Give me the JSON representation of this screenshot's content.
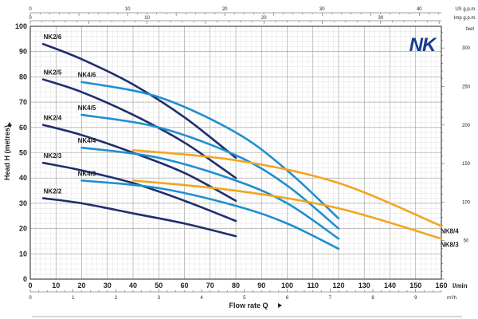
{
  "chart_data": {
    "type": "line",
    "title": "",
    "xlabel": "Flow rate Q",
    "ylabel": "Head H (metres)",
    "xlim": [
      0,
      160
    ],
    "ylim": [
      0,
      100
    ],
    "x_ticks": [
      0,
      10,
      20,
      30,
      40,
      50,
      60,
      70,
      80,
      90,
      100,
      110,
      120,
      130,
      140,
      150,
      160
    ],
    "x_unit": "l/min",
    "y_ticks": [
      0,
      10,
      20,
      30,
      40,
      50,
      60,
      70,
      80,
      90,
      100
    ],
    "secondary_axes": {
      "m3h": {
        "label": "m³/h",
        "ticks": [
          0,
          1,
          2,
          3,
          4,
          5,
          6,
          7,
          8,
          9
        ]
      },
      "usgpm": {
        "label": "US g.p.m.",
        "ticks": [
          0,
          10,
          20,
          30,
          40
        ]
      },
      "impgpm": {
        "label": "Imp g.p.m.",
        "ticks": [
          0,
          10,
          20,
          30
        ]
      },
      "feet": {
        "label": "feet",
        "ticks": [
          50,
          100,
          150,
          200,
          250,
          300
        ]
      }
    },
    "logo": "NK",
    "series": [
      {
        "name": "NK2/6",
        "color": "#1f2f6e",
        "x": [
          5,
          20,
          40,
          60,
          80
        ],
        "y": [
          93,
          87,
          77,
          64,
          48
        ]
      },
      {
        "name": "NK2/5",
        "color": "#1f2f6e",
        "x": [
          5,
          20,
          40,
          60,
          80
        ],
        "y": [
          79,
          74,
          65,
          54,
          40
        ]
      },
      {
        "name": "NK2/4",
        "color": "#1f2f6e",
        "x": [
          5,
          20,
          40,
          60,
          80
        ],
        "y": [
          61,
          57,
          50,
          42,
          31
        ]
      },
      {
        "name": "NK2/3",
        "color": "#1f2f6e",
        "x": [
          5,
          20,
          40,
          60,
          80
        ],
        "y": [
          46,
          43,
          38,
          31,
          23
        ]
      },
      {
        "name": "NK2/2",
        "color": "#1f2f6e",
        "x": [
          5,
          20,
          40,
          60,
          80
        ],
        "y": [
          32,
          30,
          26,
          22,
          17
        ]
      },
      {
        "name": "NK4/6",
        "color": "#1f8fd0",
        "x": [
          20,
          50,
          80,
          100,
          120
        ],
        "y": [
          78,
          72,
          58,
          43,
          24
        ]
      },
      {
        "name": "NK4/5",
        "color": "#1f8fd0",
        "x": [
          20,
          50,
          80,
          100,
          120
        ],
        "y": [
          65,
          60,
          49,
          37,
          20
        ]
      },
      {
        "name": "NK4/4",
        "color": "#1f8fd0",
        "x": [
          20,
          50,
          80,
          100,
          120
        ],
        "y": [
          52,
          48,
          39,
          30,
          16
        ]
      },
      {
        "name": "NK4/3",
        "color": "#1f8fd0",
        "x": [
          20,
          50,
          80,
          100,
          120
        ],
        "y": [
          39,
          36,
          29,
          22,
          12
        ]
      },
      {
        "name": "NK8/4",
        "color": "#f2a51f",
        "x": [
          40,
          80,
          120,
          160
        ],
        "y": [
          51,
          47,
          38,
          21
        ]
      },
      {
        "name": "NK8/3",
        "color": "#f2a51f",
        "x": [
          40,
          80,
          120,
          160
        ],
        "y": [
          39,
          35,
          28,
          16
        ]
      }
    ]
  }
}
